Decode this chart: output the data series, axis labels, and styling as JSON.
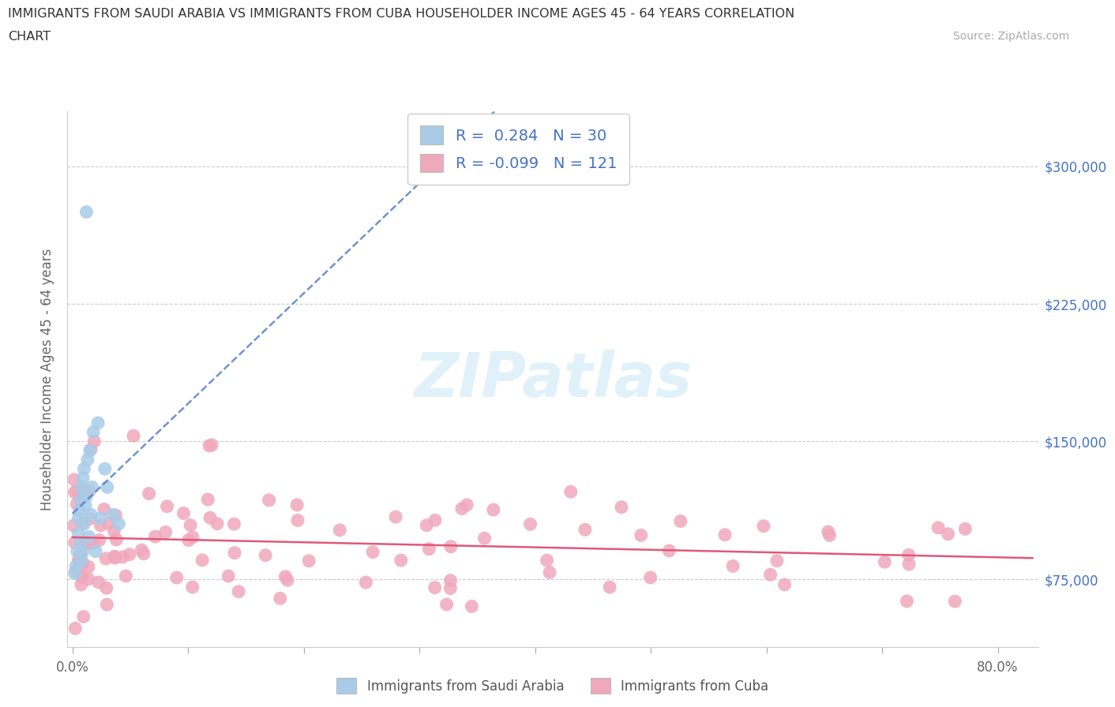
{
  "title_line1": "IMMIGRANTS FROM SAUDI ARABIA VS IMMIGRANTS FROM CUBA HOUSEHOLDER INCOME AGES 45 - 64 YEARS CORRELATION",
  "title_line2": "CHART",
  "source": "Source: ZipAtlas.com",
  "ylabel": "Householder Income Ages 45 - 64 years",
  "xtick_vals": [
    0.0,
    0.1,
    0.2,
    0.3,
    0.4,
    0.5,
    0.6,
    0.7,
    0.8
  ],
  "xtick_labels_show": {
    "0.0": "0.0%",
    "0.8": "80.0%"
  },
  "ytick_labels": [
    "$75,000",
    "$150,000",
    "$225,000",
    "$300,000"
  ],
  "ytick_vals": [
    75000,
    150000,
    225000,
    300000
  ],
  "xlim": [
    -0.005,
    0.835
  ],
  "ylim": [
    38000,
    330000
  ],
  "saudi_R": "0.284",
  "saudi_N": "30",
  "cuba_R": "-0.099",
  "cuba_N": "121",
  "saudi_scatter_color": "#a8cce8",
  "cuba_scatter_color": "#f0a8bc",
  "saudi_line_color": "#5580cc",
  "cuba_line_color": "#e05878",
  "legend_label1": "Immigrants from Saudi Arabia",
  "legend_label2": "Immigrants from Cuba",
  "watermark": "ZIPatlas",
  "background_color": "#ffffff",
  "grid_color": "#cccccc",
  "title_color": "#333333",
  "axis_label_color": "#666666",
  "right_ytick_color": "#4472c4",
  "source_color": "#aaaaaa"
}
